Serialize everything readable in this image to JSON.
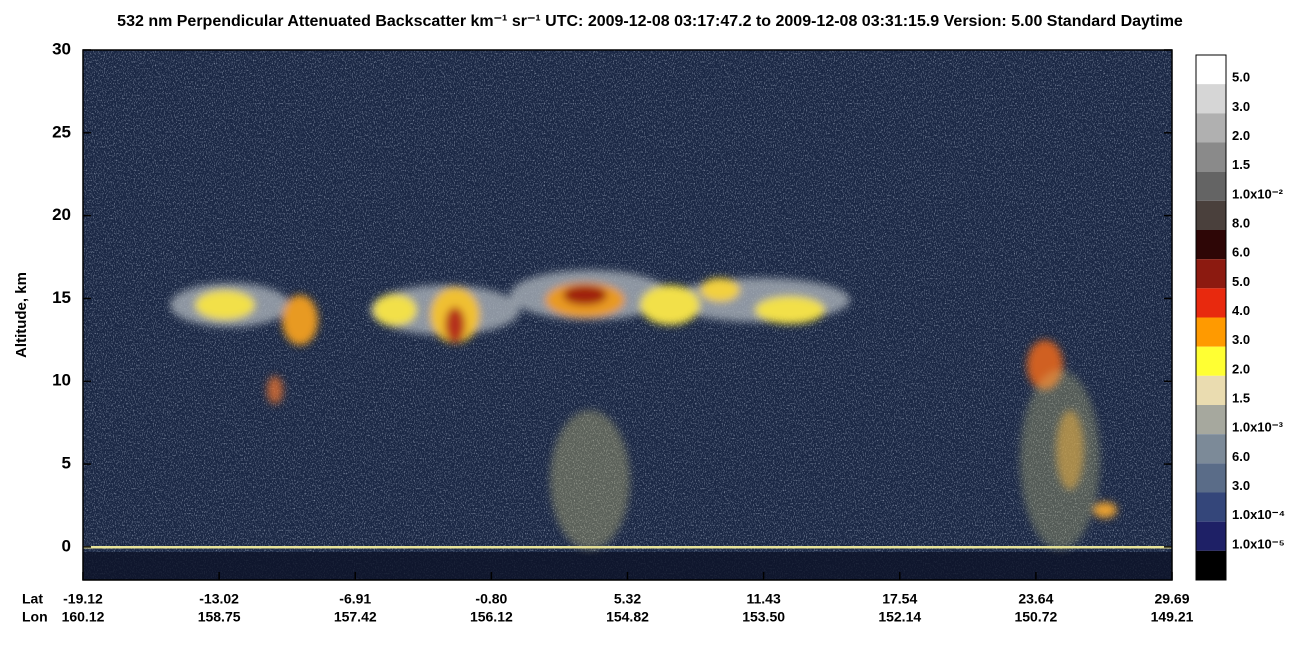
{
  "chart_data": {
    "type": "heatmap",
    "title": "532 nm Perpendicular Attenuated Backscatter km⁻¹ sr⁻¹  UTC: 2009-12-08 03:17:47.2 to 2009-12-08 03:31:15.9  Version: 5.00 Standard Daytime",
    "ylabel": "Altitude, km",
    "ylim": [
      -2,
      30
    ],
    "yticks": [
      0,
      5,
      10,
      15,
      20,
      25,
      30
    ],
    "x_rows": [
      {
        "name": "Lat",
        "labels": [
          "-19.12",
          "-13.02",
          "-6.91",
          "-0.80",
          "5.32",
          "11.43",
          "17.54",
          "23.64",
          "29.69"
        ]
      },
      {
        "name": "Lon",
        "labels": [
          "160.12",
          "158.75",
          "157.42",
          "156.12",
          "154.82",
          "153.50",
          "152.14",
          "150.72",
          "149.21"
        ]
      }
    ],
    "colorbar": {
      "colors": [
        "#ffffff",
        "#d6d6d6",
        "#b0b0b0",
        "#8a8a8a",
        "#646464",
        "#4a403c",
        "#2e0606",
        "#8c1a10",
        "#e8290e",
        "#ff9a00",
        "#ffff33",
        "#eadcb0",
        "#a6a89e",
        "#7c8a98",
        "#5a6c88",
        "#34467a",
        "#1e2066",
        "#000000"
      ],
      "labels": [
        "5.0",
        "3.0",
        "2.0",
        "1.5",
        "1.0x10⁻²",
        "8.0",
        "6.0",
        "5.0",
        "4.0",
        "3.0",
        "2.0",
        "1.5",
        "1.0x10⁻³",
        "6.0",
        "3.0",
        "1.0x10⁻⁴",
        "1.0x10⁻⁵"
      ]
    }
  }
}
